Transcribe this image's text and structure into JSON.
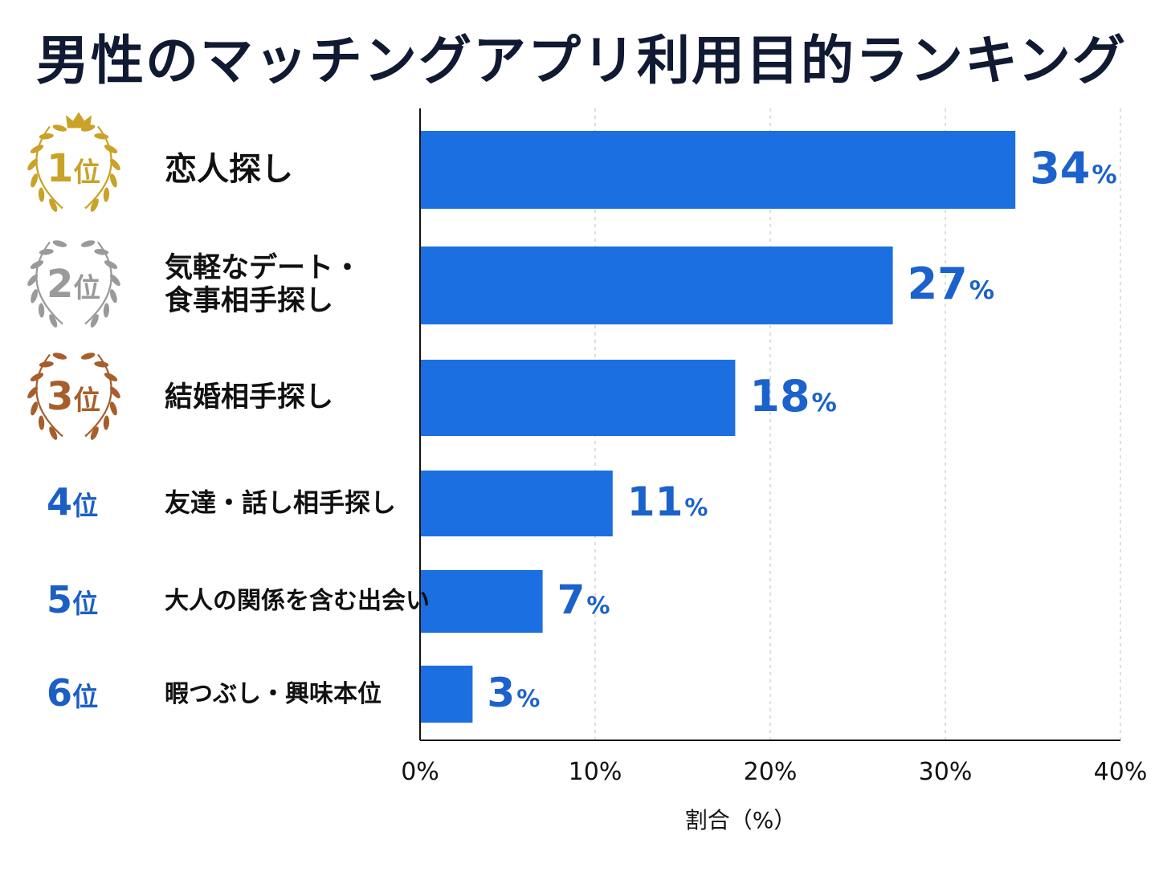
{
  "chart_data": {
    "type": "bar",
    "orientation": "horizontal",
    "title": "男性のマッチングアプリ利用目的ランキング",
    "xlabel": "割合（%）",
    "ylabel": "",
    "xlim": [
      0,
      40
    ],
    "xticks": [
      "0%",
      "10%",
      "20%",
      "30%",
      "40%"
    ],
    "grid": "vertical dashed",
    "categories": [
      "恋人探し",
      "気軽なデート・\n食事相手探し",
      "結婚相手探し",
      "友達・話し相手探し",
      "大人の関係を含む出会い",
      "暇つぶし・興味本位"
    ],
    "ranks": [
      "1",
      "2",
      "3",
      "4",
      "5",
      "6"
    ],
    "rank_suffix": "位",
    "values": [
      34,
      27,
      18,
      11,
      7,
      3
    ],
    "value_labels": [
      "34",
      "27",
      "18",
      "11",
      "7",
      "3"
    ],
    "value_suffix": "%",
    "colors": {
      "bar": "#1c6fe0",
      "value_text": "#1c62cc",
      "gold": "#c9a227",
      "silver": "#9a9a9a",
      "bronze": "#a65f2c",
      "rank_blue": "#1c5fc4"
    },
    "rank_badges": [
      "gold-laurel-crown",
      "silver-laurel",
      "bronze-laurel",
      "none",
      "none",
      "none"
    ]
  }
}
